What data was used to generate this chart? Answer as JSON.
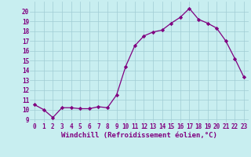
{
  "x": [
    0,
    1,
    2,
    3,
    4,
    5,
    6,
    7,
    8,
    9,
    10,
    11,
    12,
    13,
    14,
    15,
    16,
    17,
    18,
    19,
    20,
    21,
    22,
    23
  ],
  "y": [
    10.5,
    10.0,
    9.2,
    10.2,
    10.2,
    10.1,
    10.1,
    10.3,
    10.2,
    11.5,
    14.4,
    16.5,
    17.5,
    17.9,
    18.1,
    18.8,
    19.4,
    20.3,
    19.2,
    18.8,
    18.3,
    17.0,
    15.2,
    13.3
  ],
  "line_color": "#800080",
  "marker": "D",
  "marker_size": 2.2,
  "bg_color": "#c8eef0",
  "grid_color": "#a0ccd4",
  "xlabel": "Windchill (Refroidissement éolien,°C)",
  "xlabel_color": "#800080",
  "xlabel_fontsize": 6.5,
  "ylabel_ticks": [
    9,
    10,
    11,
    12,
    13,
    14,
    15,
    16,
    17,
    18,
    19,
    20
  ],
  "ylim": [
    8.7,
    21.0
  ],
  "xlim": [
    -0.5,
    23.5
  ],
  "tick_fontsize": 5.5,
  "tick_color": "#800080"
}
